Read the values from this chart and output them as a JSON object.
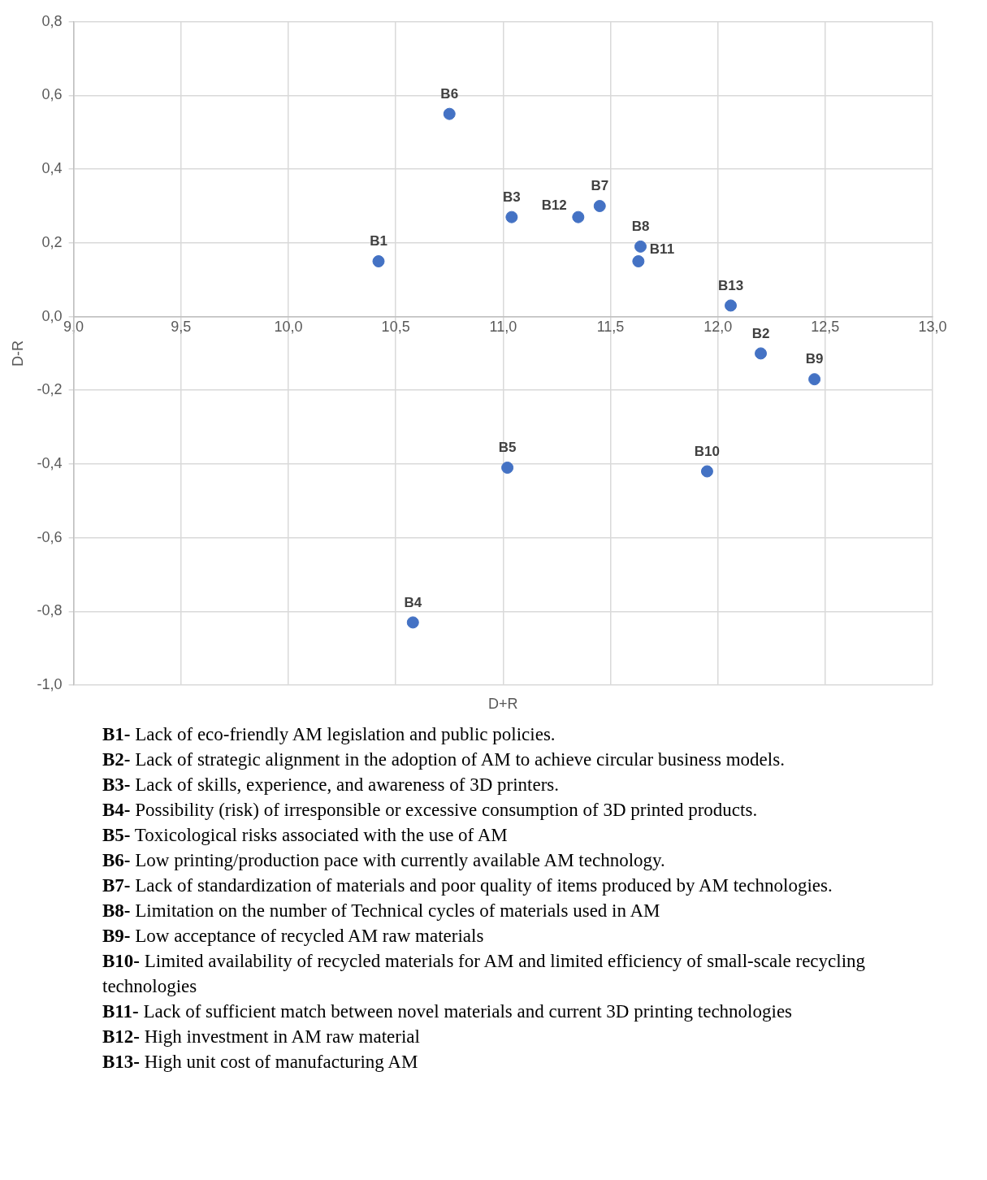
{
  "chart_data": {
    "type": "scatter",
    "xlabel": "D+R",
    "ylabel": "D-R",
    "series": [
      {
        "color": "#4472c4",
        "x": [
          10.42,
          12.2,
          11.04,
          10.58,
          11.02,
          10.75,
          11.45,
          11.64,
          12.45,
          11.95,
          11.63,
          11.35,
          12.06
        ],
        "values": [
          0.15,
          -0.1,
          0.27,
          -0.83,
          -0.41,
          0.55,
          0.3,
          0.19,
          -0.17,
          -0.42,
          0.15,
          0.27,
          0.03
        ]
      }
    ],
    "xlim": [
      9,
      13
    ],
    "xticks": [
      {
        "value": 9,
        "label": "9,0"
      },
      {
        "value": 9.5,
        "label": "9,5"
      },
      {
        "value": 10,
        "label": "10,0"
      },
      {
        "value": 10.5,
        "label": "10,5"
      },
      {
        "value": 11,
        "label": "11,0"
      },
      {
        "value": 11.5,
        "label": "11,5"
      },
      {
        "value": 12,
        "label": "12,0"
      },
      {
        "value": 12.5,
        "label": "12,5"
      },
      {
        "value": 13,
        "label": "13,0"
      }
    ],
    "ylim": [
      -1,
      0.8
    ],
    "yticks": [
      {
        "value": -1,
        "label": "-1,0"
      },
      {
        "value": -0.8,
        "label": "-0,8"
      },
      {
        "value": -0.6,
        "label": "-0,6"
      },
      {
        "value": -0.4,
        "label": "-0,4"
      },
      {
        "value": -0.2,
        "label": "-0,2"
      },
      {
        "value": 0,
        "label": "0,0"
      },
      {
        "value": 0.2,
        "label": "0,2"
      },
      {
        "value": 0.4,
        "label": "0,4"
      },
      {
        "value": 0.6,
        "label": "0,6"
      },
      {
        "value": 0.8,
        "label": "0,8"
      }
    ],
    "grid": true,
    "marker": "circle",
    "legend": false,
    "annotations": [
      {
        "text": "B1",
        "x": 10.42,
        "y": 0.15
      },
      {
        "text": "B2",
        "x": 12.2,
        "y": -0.1
      },
      {
        "text": "B3",
        "x": 11.04,
        "y": 0.27
      },
      {
        "text": "B4",
        "x": 10.58,
        "y": -0.83
      },
      {
        "text": "B5",
        "x": 11.02,
        "y": -0.41
      },
      {
        "text": "B6",
        "x": 10.75,
        "y": 0.55
      },
      {
        "text": "B7",
        "x": 11.45,
        "y": 0.3
      },
      {
        "text": "B8",
        "x": 11.64,
        "y": 0.19
      },
      {
        "text": "B9",
        "x": 12.45,
        "y": -0.17
      },
      {
        "text": "B10",
        "x": 11.95,
        "y": -0.42
      },
      {
        "text": "B11",
        "x": 11.63,
        "y": 0.15
      },
      {
        "text": "B12",
        "x": 11.35,
        "y": 0.27
      },
      {
        "text": "B13",
        "x": 12.06,
        "y": 0.03
      },
      "B1- Lack of eco-friendly AM legislation and public policies.",
      "B2- Lack of strategic alignment in the adoption of AM to achieve circular business models.",
      "B3- Lack of skills, experience, and awareness of 3D printers.",
      "B4- Possibility (risk) of irresponsible or excessive consumption of 3D printed products.",
      "B5- Toxicological risks associated with the use of AM",
      "B6- Low printing/production pace with currently available AM technology.",
      "B7- Lack of standardization of materials and poor quality of items produced by AM technologies.",
      "B8- Limitation on the number of Technical cycles of materials used in AM",
      "B9- Low acceptance of recycled AM raw materials",
      "B10- Limited availability of recycled materials for AM and limited efficiency of small-scale recycling technologies",
      "B11- Lack of sufficient match between novel materials and current 3D printing technologies",
      "B12- High investment in AM raw material",
      "B13- High unit cost of manufacturing AM"
    ]
  }
}
